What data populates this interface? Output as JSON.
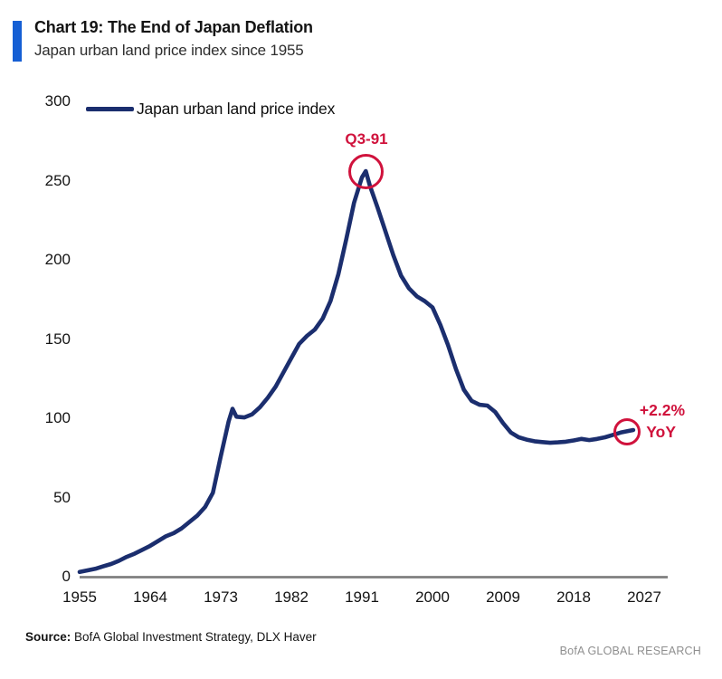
{
  "header": {
    "title": "Chart 19: The End of Japan Deflation",
    "subtitle": "Japan urban land price index since 1955"
  },
  "legend": {
    "label": "Japan urban land price index"
  },
  "annotations": {
    "peak_label": "Q3-91",
    "end_label_line1": "+2.2%",
    "end_label_line2": "YoY"
  },
  "footer": {
    "source_label": "Source:",
    "source_text": "BofA Global Investment Strategy, DLX Haver",
    "brand": "BofA GLOBAL RESEARCH"
  },
  "colors": {
    "line": "#1b2e6e",
    "annotation_red": "#d0123c",
    "axis": "#7f7f7f",
    "accent": "#155fd4"
  },
  "chart_data": {
    "type": "line",
    "title": "Chart 19: The End of Japan Deflation",
    "subtitle": "Japan urban land price index since 1955",
    "xlabel": "",
    "ylabel": "",
    "xlim": [
      1955,
      2030
    ],
    "ylim": [
      0,
      300
    ],
    "grid": false,
    "legend_position": "top-left",
    "x_ticks": [
      1955,
      1964,
      1973,
      1982,
      1991,
      2000,
      2009,
      2018,
      2027
    ],
    "y_ticks": [
      0,
      50,
      100,
      150,
      200,
      250,
      300
    ],
    "series": [
      {
        "name": "Japan urban land price index",
        "points": [
          [
            1955,
            3
          ],
          [
            1956,
            4
          ],
          [
            1957,
            5
          ],
          [
            1958,
            6.5
          ],
          [
            1959,
            8
          ],
          [
            1960,
            10
          ],
          [
            1961,
            12.5
          ],
          [
            1962,
            14.5
          ],
          [
            1963,
            17
          ],
          [
            1964,
            19.5
          ],
          [
            1965,
            22.5
          ],
          [
            1966,
            25.5
          ],
          [
            1967,
            27.5
          ],
          [
            1968,
            30.5
          ],
          [
            1969,
            34.5
          ],
          [
            1970,
            38.5
          ],
          [
            1971,
            44
          ],
          [
            1972,
            53
          ],
          [
            1973,
            76
          ],
          [
            1974,
            98
          ],
          [
            1974.5,
            106
          ],
          [
            1975,
            101
          ],
          [
            1976,
            100.5
          ],
          [
            1977,
            102.5
          ],
          [
            1978,
            107
          ],
          [
            1979,
            113
          ],
          [
            1980,
            120
          ],
          [
            1981,
            129
          ],
          [
            1982,
            138
          ],
          [
            1983,
            147
          ],
          [
            1984,
            152
          ],
          [
            1985,
            156
          ],
          [
            1986,
            163
          ],
          [
            1987,
            174
          ],
          [
            1988,
            191
          ],
          [
            1989,
            213
          ],
          [
            1990,
            236
          ],
          [
            1991,
            252
          ],
          [
            1991.5,
            256
          ],
          [
            1992,
            247
          ],
          [
            1993,
            233
          ],
          [
            1994,
            218
          ],
          [
            1995,
            203
          ],
          [
            1996,
            190
          ],
          [
            1997,
            182
          ],
          [
            1998,
            177
          ],
          [
            1999,
            174
          ],
          [
            2000,
            170
          ],
          [
            2001,
            159
          ],
          [
            2002,
            146
          ],
          [
            2003,
            131
          ],
          [
            2004,
            118
          ],
          [
            2005,
            111
          ],
          [
            2006,
            108.5
          ],
          [
            2007,
            108
          ],
          [
            2008,
            104
          ],
          [
            2009,
            97
          ],
          [
            2010,
            91
          ],
          [
            2011,
            88
          ],
          [
            2012,
            86.5
          ],
          [
            2013,
            85.5
          ],
          [
            2014,
            85
          ],
          [
            2015,
            84.5
          ],
          [
            2016,
            84.8
          ],
          [
            2017,
            85.2
          ],
          [
            2018,
            86
          ],
          [
            2019,
            87
          ],
          [
            2020,
            86.2
          ],
          [
            2021,
            87
          ],
          [
            2022,
            88
          ],
          [
            2023,
            89.5
          ],
          [
            2024,
            91
          ],
          [
            2025,
            92
          ],
          [
            2025.6,
            92.6
          ]
        ]
      }
    ],
    "chart_annotations": [
      {
        "label": "Q3-91",
        "x": 1991.5,
        "y": 256
      },
      {
        "label": "+2.2% YoY",
        "x": 2024.9,
        "y": 90
      }
    ]
  }
}
